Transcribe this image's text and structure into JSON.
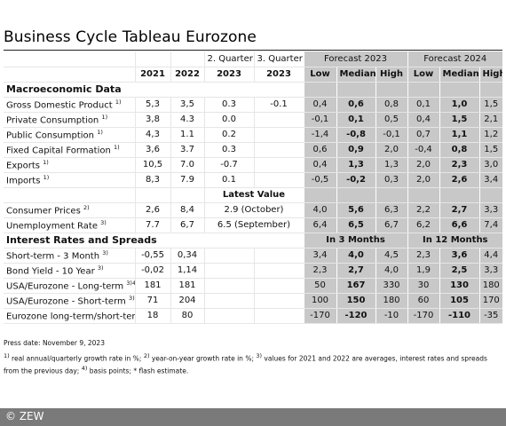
{
  "title": "Business Cycle Tableau Eurozone",
  "header": {
    "q2": "2. Quarter",
    "q3": "3. Quarter",
    "fc2023": "Forecast 2023",
    "fc2024": "Forecast 2024",
    "y2021": "2021",
    "y2022": "2022",
    "y2023a": "2023",
    "y2023b": "2023",
    "low": "Low",
    "median": "Median",
    "high": "High"
  },
  "sections": {
    "macro": "Macroeconomic Data",
    "rates": "Interest Rates and Spreads"
  },
  "macro_rows": [
    {
      "label": "Gross Domestic Product",
      "sup": "1)",
      "y2021": "5,3",
      "y2022": "3,5",
      "q2": "0.3",
      "q3": "-0.1",
      "f23": [
        "0,4",
        "0,6",
        "0,8"
      ],
      "f24": [
        "0,1",
        "1,0",
        "1,5"
      ]
    },
    {
      "label": "Private Consumption",
      "sup": "1)",
      "y2021": "3,8",
      "y2022": "4.3",
      "q2": "0.0",
      "q3": "",
      "f23": [
        "-0,1",
        "0,1",
        "0,5"
      ],
      "f24": [
        "0,4",
        "1,5",
        "2,1"
      ]
    },
    {
      "label": "Public Consumption",
      "sup": "1)",
      "y2021": "4,3",
      "y2022": "1.1",
      "q2": "0.2",
      "q3": "",
      "f23": [
        "-1,4",
        "-0,8",
        "-0,1"
      ],
      "f24": [
        "0,7",
        "1,1",
        "1,2"
      ]
    },
    {
      "label": "Fixed Capital Formation",
      "sup": "1)",
      "y2021": "3,6",
      "y2022": "3.7",
      "q2": "0.3",
      "q3": "",
      "f23": [
        "0,6",
        "0,9",
        "2,0"
      ],
      "f24": [
        "-0,4",
        "0,8",
        "1,5"
      ]
    },
    {
      "label": "Exports",
      "sup": "1)",
      "y2021": "10,5",
      "y2022": "7.0",
      "q2": "-0.7",
      "q3": "",
      "f23": [
        "0,4",
        "1,3",
        "1,3"
      ],
      "f24": [
        "2,0",
        "2,3",
        "3,0"
      ]
    },
    {
      "label": "Imports",
      "sup": "1)",
      "y2021": "8,3",
      "y2022": "7.9",
      "q2": "0.1",
      "q3": "",
      "f23": [
        "-0,5",
        "-0,2",
        "0,3"
      ],
      "f24": [
        "2,0",
        "2,6",
        "3,4"
      ]
    }
  ],
  "latest_value": "Latest Value",
  "price_rows": [
    {
      "label": "Consumer Prices",
      "sup": "2)",
      "y2021": "2,6",
      "y2022": "8,4",
      "latest": "2.9 (October)",
      "f23": [
        "4,0",
        "5,6",
        "6,3"
      ],
      "f24": [
        "2,2",
        "2,7",
        "3,3"
      ]
    },
    {
      "label": "Unemployment Rate",
      "sup": "3)",
      "y2021": "7.7",
      "y2022": "6,7",
      "latest": "6.5 (September)",
      "f23": [
        "6,4",
        "6,5",
        "6,7"
      ],
      "f24": [
        "6,2",
        "6,6",
        "7,4"
      ]
    }
  ],
  "horizons": {
    "h3": "In 3 Months",
    "h12": "In 12 Months"
  },
  "rate_rows": [
    {
      "label": "Short-term - 3 Month",
      "sup": "3)",
      "y2021": "-0,55",
      "y2022": "0,34",
      "f23": [
        "3,4",
        "4,0",
        "4,5"
      ],
      "f24": [
        "2,3",
        "3,6",
        "4,4"
      ]
    },
    {
      "label": "Bond Yield - 10 Year",
      "sup": "3)",
      "y2021": "-0,02",
      "y2022": "1,14",
      "f23": [
        "2,3",
        "2,7",
        "4,0"
      ],
      "f24": [
        "1,9",
        "2,5",
        "3,3"
      ]
    },
    {
      "label": "USA/Eurozone - Long-term",
      "sup": "3)4)",
      "y2021": "181",
      "y2022": "181",
      "f23": [
        "50",
        "167",
        "330"
      ],
      "f24": [
        "30",
        "130",
        "180"
      ]
    },
    {
      "label": "USA/Eurozone - Short-term",
      "sup": "3)4)",
      "y2021": "71",
      "y2022": "204",
      "f23": [
        "100",
        "150",
        "180"
      ],
      "f24": [
        "60",
        "105",
        "170"
      ]
    },
    {
      "label": "Eurozone long-term/short-term",
      "sup": "",
      "y2021": "18",
      "y2022": "80",
      "f23": [
        "-170",
        "-120",
        "-10"
      ],
      "f24": [
        "-170",
        "-110",
        "-35"
      ]
    }
  ],
  "footer": {
    "press_date": "Press date: November 9, 2023",
    "note1_sup": "1)",
    "note1": " real annual/quarterly growth rate in %; ",
    "note2_sup": "2)",
    "note2": " year-on-year growth rate in %; ",
    "note3_sup": "3)",
    "note3": " values for 2021  and 2022 are averages, interest rates and spreads",
    "note3b": "from the previous day; ",
    "note4_sup": "4)",
    "note4": " basis points; * flash estimate."
  },
  "copyright": "© ZEW"
}
